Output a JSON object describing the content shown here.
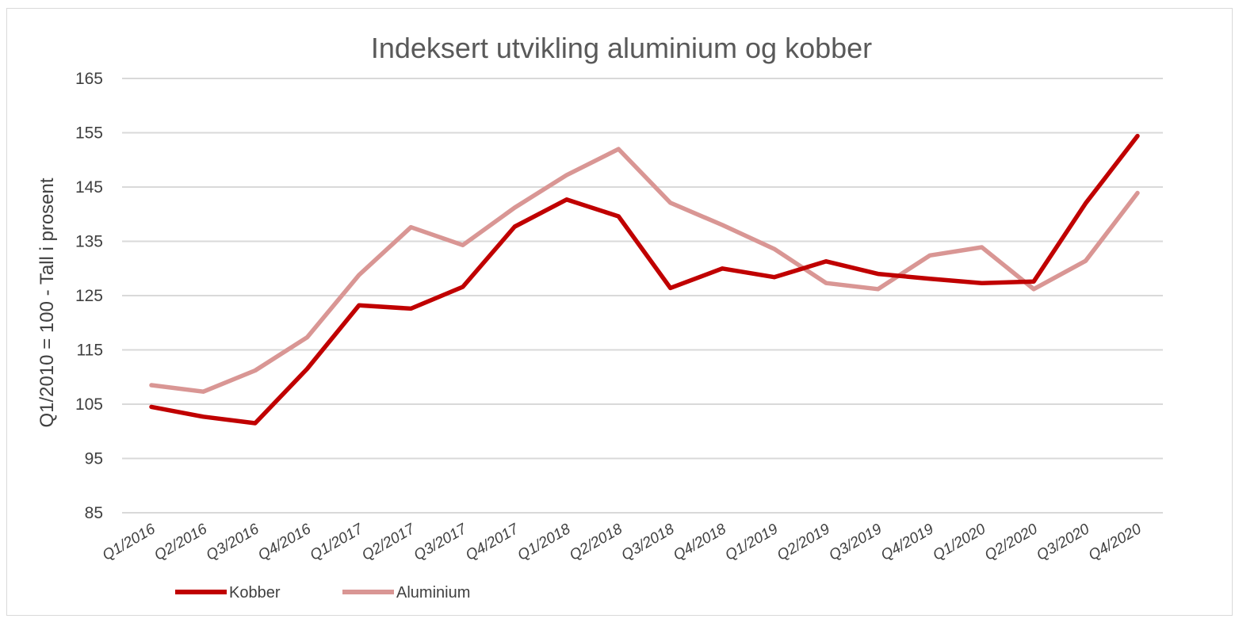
{
  "chart_data": {
    "type": "line",
    "title": "Indeksert utvikling aluminium og kobber",
    "xlabel": "",
    "ylabel": "Q1/2010 = 100 - Tall i prosent",
    "ylim": [
      85,
      165
    ],
    "yticks": [
      165,
      155,
      145,
      135,
      125,
      115,
      105,
      95,
      85
    ],
    "grid": true,
    "legend": "bottom-left",
    "categories": [
      "Q1/2016",
      "Q2/2016",
      "Q3/2016",
      "Q4/2016",
      "Q1/2017",
      "Q2/2017",
      "Q3/2017",
      "Q4/2017",
      "Q1/2018",
      "Q2/2018",
      "Q3/2018",
      "Q4/2018",
      "Q1/2019",
      "Q2/2019",
      "Q3/2019",
      "Q4/2019",
      "Q1/2020",
      "Q2/2020",
      "Q3/2020",
      "Q4/2020"
    ],
    "series": [
      {
        "name": "Kobber",
        "color": "#c00000",
        "values": [
          104.5,
          102.7,
          101.5,
          111.5,
          123.2,
          122.6,
          126.6,
          137.7,
          142.7,
          139.6,
          126.4,
          130.0,
          128.4,
          131.3,
          129.0,
          128.1,
          127.3,
          127.6,
          142.0,
          154.4
        ]
      },
      {
        "name": "Aluminium",
        "color": "#d99694",
        "values": [
          108.5,
          107.3,
          111.2,
          117.3,
          128.8,
          137.6,
          134.3,
          141.2,
          147.2,
          152.0,
          142.1,
          138.0,
          133.6,
          127.3,
          126.2,
          132.4,
          133.9,
          126.2,
          131.4,
          143.9
        ]
      }
    ]
  }
}
